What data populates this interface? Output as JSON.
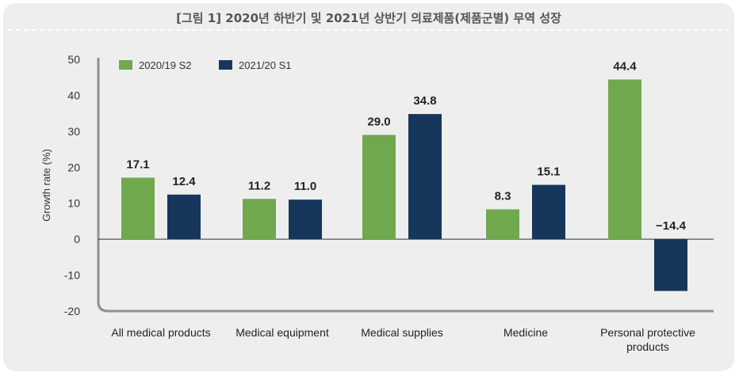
{
  "header": {
    "title": "[그림 1] 2020년 하반기 및 2021년 상반기 의료제품(제품군별) 무역 성장"
  },
  "chart_data": {
    "type": "bar",
    "title": "[그림 1] 2020년 하반기 및 2021년 상반기 의료제품(제품군별) 무역 성장",
    "xlabel": "",
    "ylabel": "Growth rate (%)",
    "ylim": [
      -20,
      50
    ],
    "yticks": [
      50,
      40,
      30,
      20,
      10,
      0,
      -10,
      -20
    ],
    "categories": [
      [
        "All medical products"
      ],
      [
        "Medical equipment"
      ],
      [
        "Medical supplies"
      ],
      [
        "Medicine"
      ],
      [
        "Personal protective",
        "products"
      ]
    ],
    "series": [
      {
        "name": "2020/19 S2",
        "color": "#70a84e",
        "values": [
          17.1,
          11.2,
          29.0,
          8.3,
          44.4
        ],
        "labels": [
          "17.1",
          "11.2",
          "29.0",
          "8.3",
          "44.4"
        ]
      },
      {
        "name": "2021/20 S1",
        "color": "#17365c",
        "values": [
          12.4,
          11.0,
          34.8,
          15.1,
          -14.4
        ],
        "labels": [
          "12.4",
          "11.0",
          "34.8",
          "15.1",
          "−14.4"
        ]
      }
    ],
    "grid": false,
    "legend_position": "top-left",
    "colors": {
      "panel_bg": "#eeeeef",
      "axis": "#909090",
      "zero_line": "#333333"
    }
  }
}
